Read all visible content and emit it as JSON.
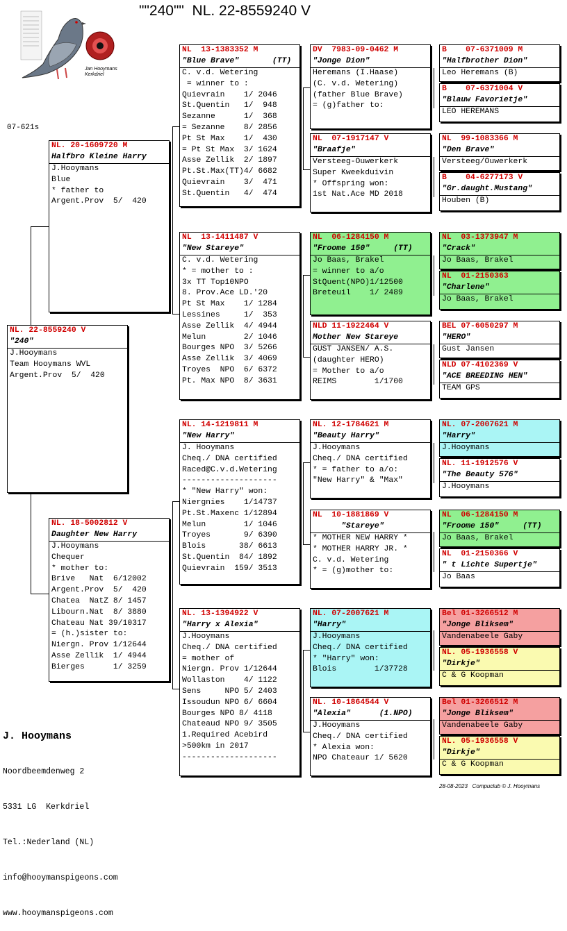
{
  "page": {
    "title": "\"\"240\"\"  NL. 22-8559240 V",
    "left_code": "07-621s",
    "footer": "28-08-2023   Compuclub © J. Hooymans"
  },
  "owner": {
    "name": "J. Hooymans",
    "lines": [
      "Noordbeemdenweg 2",
      "5331 LG  Kerkdriel",
      "Tel.:Nederland (NL)",
      "info@hooymanspigeons.com",
      "www.hooymanspigeons.com"
    ]
  },
  "logo": {
    "caption": "Jan Hooymans\nKerkdriel"
  },
  "colors": {
    "ring": "#d00000",
    "green": "#90f090",
    "cyan": "#aaf5f5",
    "pink": "#f5a0a0",
    "yellow": "#fafab0"
  },
  "boxes": [
    {
      "id": "main",
      "hdr": "NL. 22-8559240 V",
      "nm": "\"240\"",
      "lines": [
        "J.Hooymans",
        "Team Hooymans WVL",
        "Argent.Prov  5/  420"
      ]
    },
    {
      "id": "sire",
      "hdr": "NL. 20-1609720 M",
      "nm": "Halfbro Kleine Harry",
      "lines": [
        "J.Hooymans",
        "Blue",
        "* father to",
        "Argent.Prov  5/  420"
      ]
    },
    {
      "id": "dam",
      "hdr": "NL. 18-5002812 V",
      "nm": "Daughter New Harry",
      "lines": [
        "J.Hooymans",
        "Chequer",
        "* mother to:",
        "Brive   Nat  6/12002",
        "Argent.Prov  5/  420",
        "Chatea  NatZ 8/ 1457",
        "Libourn.Nat  8/ 3880",
        "Chateau Nat 39/10317",
        "= (h.)sister to:",
        "Niergn. Prov 1/12644",
        "Asse Zellik  1/ 4944",
        "Bierges      1/ 3259"
      ]
    },
    {
      "id": "ss",
      "hdr": "NL  13-1383352 M",
      "nm": "\"Blue Brave\"       (TT)",
      "lines": [
        "C. v.d. Wetering",
        " = winner to :",
        "Quievrain    1/ 2046",
        "St.Quentin   1/  948",
        "Sezanne      1/  368",
        "= Sezanne    8/ 2856",
        "Pt St Max    1/  430",
        "= Pt St Max  3/ 1624",
        "Asse Zellik  2/ 1897",
        "Pt.St.Max(TT)4/ 6682",
        "Quievrain    3/  471",
        "St.Quentin   4/  474"
      ]
    },
    {
      "id": "sd",
      "hdr": "NL  13-1411487 V",
      "nm": "\"New Stareye\"",
      "lines": [
        "C. v.d. Wetering",
        "* = mother to :",
        "3x TT Top10NPO",
        "8. Prov.Ace LD.'20",
        "Pt St Max    1/ 1284",
        "Lessines     1/  353",
        "Asse Zellik  4/ 4944",
        "Melun        2/ 1046",
        "Bourges NPO  3/ 5266",
        "Asse Zellik  3/ 4069",
        "Troyes  NPO  6/ 6372",
        "Pt. Max NPO  8/ 3631"
      ]
    },
    {
      "id": "ds",
      "hdr": "NL. 14-1219811 M",
      "nm": "\"New Harry\"",
      "lines": [
        "J. Hooymans",
        "Cheq./ DNA certified",
        "Raced@C.v.d.Wetering",
        "--------------------",
        "* \"New Harry\" won:",
        "Niergnies    1/14737",
        "Pt.St.Maxenc 1/12894",
        "Melun        1/ 1046",
        "Troyes       9/ 6390",
        "Blois       38/ 6613",
        "St.Quentin  84/ 1892",
        "Quievrain  159/ 3513"
      ]
    },
    {
      "id": "dd",
      "hdr": "NL. 13-1394922 V",
      "nm": "\"Harry x Alexia\"",
      "lines": [
        "J.Hooymans",
        "Cheq./ DNA certified",
        "= mother of",
        "Niergn. Prov 1/12644",
        "Wollaston    4/ 1122",
        "Sens     NPO 5/ 2403",
        "Issoudun NPO 6/ 6604",
        "Bourges NPO 8/ 4118",
        "Chateaud NPO 9/ 3505",
        "1.Required Acebird",
        ">500km in 2017",
        "--------------------"
      ]
    },
    {
      "id": "sss",
      "hdr": "DV  7983-09-0462 M",
      "nm": "\"Jonge Dion\"",
      "lines": [
        "Heremans (I.Haase)",
        "(C. v.d. Wetering)",
        "(father Blue Brave)",
        "= (g)father to:"
      ]
    },
    {
      "id": "ssd",
      "hdr": "NL  07-1917147 V",
      "nm": "\"Braafje\"",
      "lines": [
        "Versteeg-Ouwerkerk",
        "Super Kweekduivin",
        "* Offspring won:",
        "1st Nat.Ace MD 2018"
      ]
    },
    {
      "id": "sds",
      "hdr": "NL  06-1284150 M",
      "nm": "\"Froome 150\"     (TT)",
      "lines": [
        "Jo Baas, Brakel",
        "= winner to a/o",
        "StQuent(NPO)1/12500",
        "Breteuil    1/ 2489"
      ]
    },
    {
      "id": "sdd",
      "hdr": "NLD 11-1922464 V",
      "nm": "Mother New Stareye",
      "lines": [
        "GUST JANSEN/ A.S.",
        "(daughter HERO)",
        "= Mother to a/o",
        "REIMS        1/1700"
      ]
    },
    {
      "id": "dss",
      "hdr": "NL. 12-1784621 M",
      "nm": "\"Beauty Harry\"",
      "lines": [
        "J.Hooymans",
        "Cheq./ DNA certified",
        "* = father to a/o:",
        "\"New Harry\" & \"Max\""
      ]
    },
    {
      "id": "dsd",
      "hdr": "NL  10-1881869 V",
      "nm": "      \"Stareye\"",
      "lines": [
        "* MOTHER NEW HARRY *",
        "* MOTHER HARRY JR. *",
        "C. v.d. Wetering",
        "* = (g)mother to:"
      ]
    },
    {
      "id": "dds",
      "hdr": "NL. 07-2007621 M",
      "nm": "\"Harry\"",
      "lines": [
        "J.Hooymans",
        "Cheq./ DNA certified",
        "* \"Harry\" won:",
        "Blois        1/37728"
      ]
    },
    {
      "id": "ddd",
      "hdr": "NL. 10-1864544 V",
      "nm": "\"Alexia\"      (1.NPO)",
      "lines": [
        "J.Hooymans",
        "Cheq./ DNA certified",
        "* Alexia won:",
        "NPO Chateaur 1/ 5620"
      ]
    },
    {
      "id": "g1",
      "hdr": "B    07-6371009 M",
      "nm": "\"Halfbrother Dion\"",
      "lines": [
        "Leo Heremans (B)"
      ]
    },
    {
      "id": "g2",
      "hdr": "B    07-6371004 V",
      "nm": "\"Blauw Favorietje\"",
      "lines": [
        "LEO HEREMANS"
      ]
    },
    {
      "id": "g3",
      "hdr": "NL  99-1083366 M",
      "nm": "\"Den Brave\"",
      "lines": [
        "Versteeg/Ouwerkerk"
      ]
    },
    {
      "id": "g4",
      "hdr": "B    04-6277173 V",
      "nm": "\"Gr.daught.Mustang\"",
      "lines": [
        "Houben (B)"
      ]
    },
    {
      "id": "g5",
      "hdr": "NL  03-1373947 M",
      "nm": "\"Crack\"",
      "lines": [
        "Jo Baas, Brakel"
      ]
    },
    {
      "id": "g6",
      "hdr": "NL  01-2150363",
      "nm": "\"Charlene\"",
      "lines": [
        "Jo Baas, Brakel"
      ]
    },
    {
      "id": "g7",
      "hdr": "BEL 07-6050297 M",
      "nm": "\"HERO\"",
      "lines": [
        "Gust Jansen"
      ]
    },
    {
      "id": "g8",
      "hdr": "NLD 07-4102369 V",
      "nm": "\"ACE BREEDING HEN\"",
      "lines": [
        "TEAM GPS"
      ]
    },
    {
      "id": "g9",
      "hdr": "NL. 07-2007621 M",
      "nm": "\"Harry\"",
      "lines": [
        "J.Hooymans"
      ]
    },
    {
      "id": "g10",
      "hdr": "NL. 11-1912576 V",
      "nm": "\"The Beauty 576\"",
      "lines": [
        "J.Hooymans"
      ]
    },
    {
      "id": "g11",
      "hdr": "NL  06-1284150 M",
      "nm": "\"Froome 150\"     (TT)",
      "lines": [
        "Jo Baas, Brakel"
      ]
    },
    {
      "id": "g12",
      "hdr": "NL  01-2150366 V",
      "nm": "\" t Lichte Supertje\"",
      "lines": [
        "Jo Baas"
      ]
    },
    {
      "id": "g13",
      "hdr": "Bel 01-3266512 M",
      "nm": "\"Jonge Bliksem\"",
      "lines": [
        "Vandenabeele Gaby"
      ]
    },
    {
      "id": "g14",
      "hdr": "NL. 05-1936558 V",
      "nm": "\"Dirkje\"",
      "lines": [
        "C & G Koopman"
      ]
    },
    {
      "id": "g15",
      "hdr": "Bel 01-3266512 M",
      "nm": "\"Jonge Bliksem\"",
      "lines": [
        "Vandenabeele Gaby"
      ]
    },
    {
      "id": "g16",
      "hdr": "NL. 05-1936558 V",
      "nm": "\"Dirkje\"",
      "lines": [
        "C & G Koopman"
      ]
    }
  ]
}
